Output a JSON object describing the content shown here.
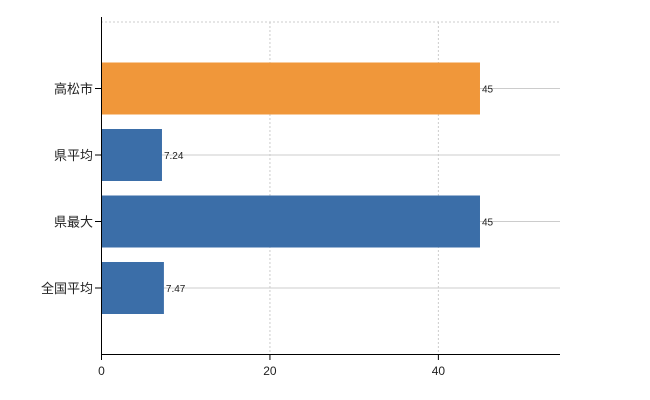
{
  "chart_data": {
    "type": "bar",
    "orientation": "horizontal",
    "categories": [
      "高松市",
      "県平均",
      "県最大",
      "全国平均"
    ],
    "values": [
      45,
      7.24,
      45,
      7.47
    ],
    "data_labels": [
      "45",
      "7.24",
      "45",
      "7.47"
    ],
    "bar_colors": [
      "#f0973a",
      "#3b6ea8",
      "#3b6ea8",
      "#3b6ea8"
    ],
    "highlight_color": "#f0973a",
    "base_color": "#3b6ea8",
    "x_ticks": [
      0,
      20,
      40
    ],
    "x_tick_labels": [
      "0",
      "20",
      "40"
    ],
    "xlim": [
      0,
      54.5
    ],
    "title": "",
    "xlabel": "",
    "ylabel": "",
    "grid": true,
    "legend": "none"
  }
}
